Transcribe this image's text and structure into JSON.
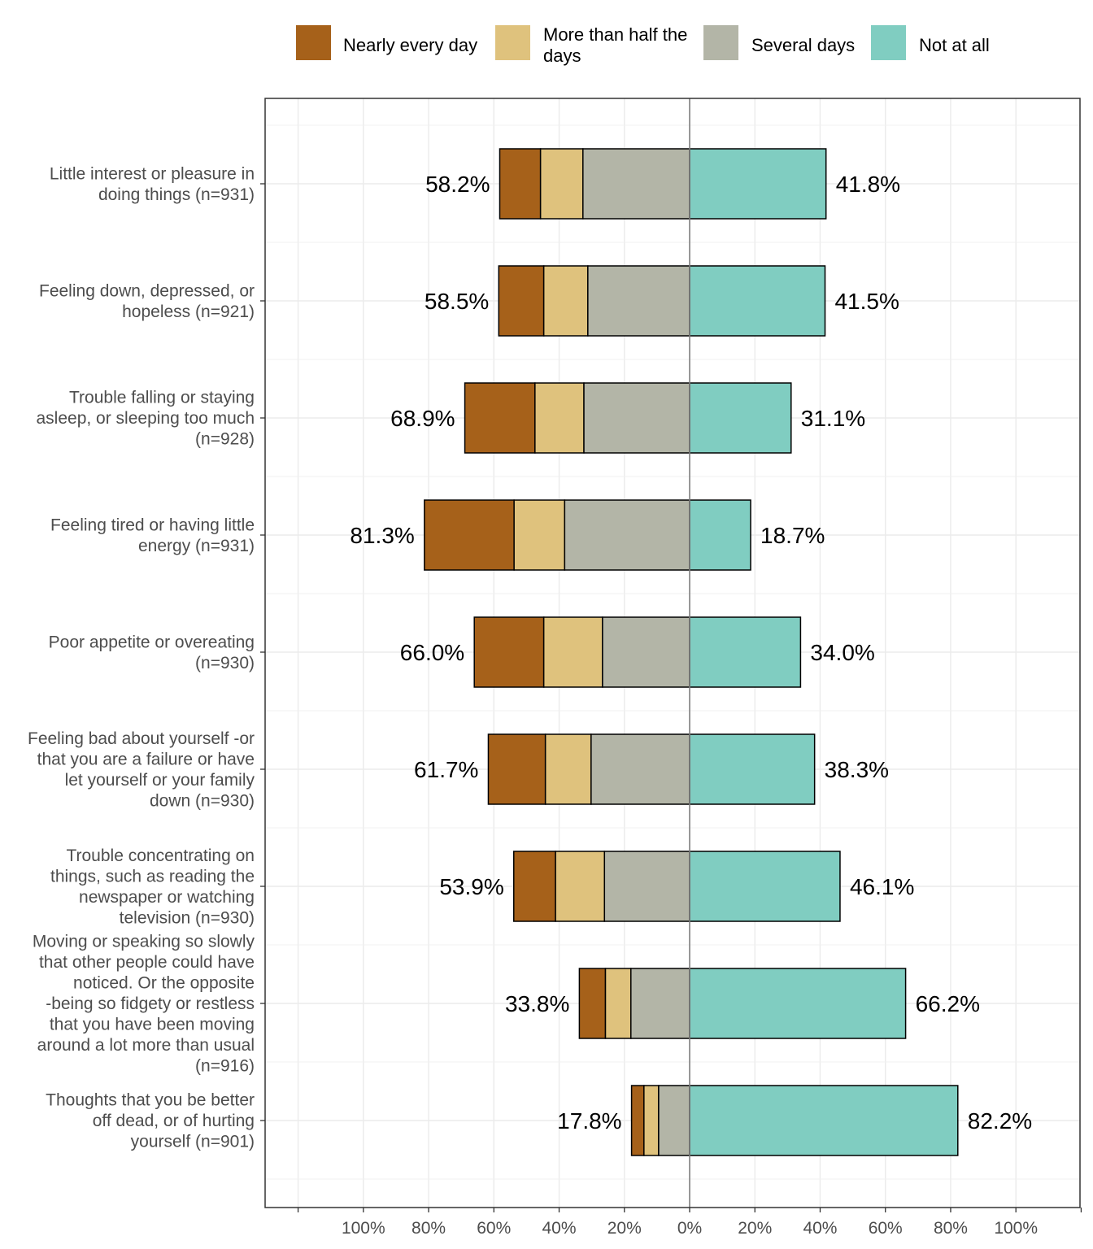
{
  "chart_data": {
    "type": "bar",
    "orientation": "horizontal",
    "stacked": true,
    "diverging": true,
    "grid": true,
    "legend_position": "top",
    "xlim": [
      -120,
      120
    ],
    "x_ticks": [
      -100,
      -80,
      -60,
      -40,
      -20,
      0,
      20,
      40,
      60,
      80,
      100
    ],
    "x_tick_labels": [
      "100%",
      "80%",
      "60%",
      "40%",
      "20%",
      "0%",
      "20%",
      "40%",
      "60%",
      "80%",
      "100%"
    ],
    "legend": [
      {
        "name": "Nearly every day",
        "color": "#a6611a"
      },
      {
        "name": "More than half the days",
        "color": "#dfc27d"
      },
      {
        "name": "Several days",
        "color": "#b3b5a7"
      },
      {
        "name": "Not at all",
        "color": "#80cdc1"
      }
    ],
    "categories": [
      "Little interest or pleasure in doing things  (n=931)",
      "Feeling down, depressed, or hopeless  (n=921)",
      "Trouble falling or staying asleep, or sleeping too much  (n=928)",
      "Feeling tired or having little energy  (n=931)",
      "Poor appetite or overeating (n=930)",
      "Feeling bad about yourself -or that you are a failure or have let yourself or your family down (n=930)",
      "Trouble concentrating on things, such as reading the newspaper or watching television (n=930)",
      "Moving or speaking so slowly that other people could have noticed. Or the opposite -being so fidgety or restless that you have been moving around a lot more than usual (n=916)",
      "Thoughts that you be better off dead, or of hurting yourself (n=901)"
    ],
    "category_label_lines": [
      [
        "Little interest or pleasure in",
        "doing things  (n=931)"
      ],
      [
        "Feeling down, depressed, or",
        "hopeless  (n=921)"
      ],
      [
        "Trouble falling or staying",
        "asleep, or sleeping too much",
        "(n=928)"
      ],
      [
        "Feeling tired or having little",
        "energy  (n=931)"
      ],
      [
        "Poor appetite or overeating",
        "(n=930)"
      ],
      [
        "Feeling bad about yourself -or",
        "that you are a failure or have",
        "let yourself or your family",
        "down (n=930)"
      ],
      [
        "Trouble concentrating on",
        "things, such as reading the",
        "newspaper or watching",
        "television (n=930)"
      ],
      [
        "Moving or speaking so slowly",
        "that other people could have",
        "noticed. Or the opposite",
        "-being so fidgety or restless",
        "that you have been moving",
        "around a lot more than usual",
        "(n=916)"
      ],
      [
        "Thoughts that you be better",
        "off dead, or of hurting",
        "yourself (n=901)"
      ]
    ],
    "series": [
      {
        "name": "Nearly every day",
        "values": [
          12.5,
          13.8,
          21.5,
          27.5,
          21.3,
          17.5,
          12.8,
          8.0,
          3.8
        ]
      },
      {
        "name": "More than half the days",
        "values": [
          13.0,
          13.5,
          15.0,
          15.5,
          18.0,
          14.0,
          15.0,
          7.8,
          4.5
        ]
      },
      {
        "name": "Several days",
        "values": [
          32.7,
          31.2,
          32.4,
          38.3,
          26.7,
          30.2,
          26.1,
          18.0,
          9.5
        ]
      },
      {
        "name": "Not at all",
        "values": [
          41.8,
          41.5,
          31.1,
          18.7,
          34.0,
          38.3,
          46.1,
          66.2,
          82.2
        ]
      }
    ],
    "left_labels": [
      "58.2%",
      "58.5%",
      "68.9%",
      "81.3%",
      "66.0%",
      "61.7%",
      "53.9%",
      "33.8%",
      "17.8%"
    ],
    "right_labels": [
      "41.8%",
      "41.5%",
      "31.1%",
      "18.7%",
      "34.0%",
      "38.3%",
      "46.1%",
      "66.2%",
      "82.2%"
    ]
  },
  "legend_display": [
    {
      "lines": [
        "Nearly every day"
      ]
    },
    {
      "lines": [
        "More than half the",
        "days"
      ]
    },
    {
      "lines": [
        "Several days"
      ]
    },
    {
      "lines": [
        "Not at all"
      ]
    }
  ]
}
